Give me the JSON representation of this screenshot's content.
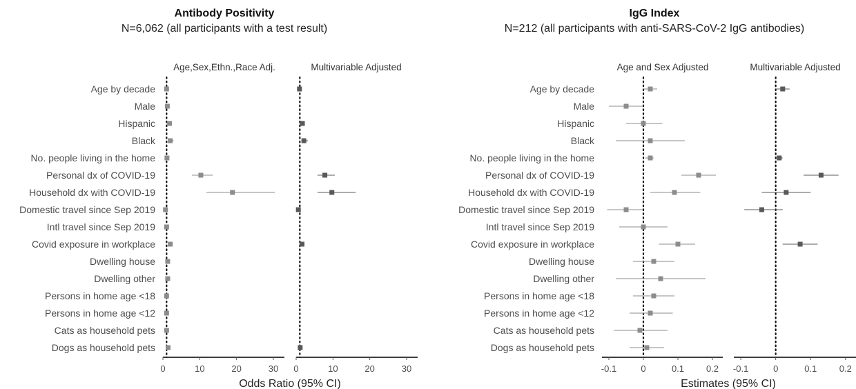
{
  "chart_data": [
    {
      "type": "forest",
      "title": "Antibody Positivity",
      "subtitle": "N=6,062 (all participants with a test result)",
      "xlabel": "Odds Ratio (95% CI)",
      "xlim": [
        0,
        33
      ],
      "xticks": [
        0,
        10,
        20,
        30
      ],
      "reference_line": 1,
      "rows": [
        "Age by decade",
        "Male",
        "Hispanic",
        "Black",
        "No. people living in the home",
        "Personal dx of COVID-19",
        "Household dx with COVID-19",
        "Domestic travel since Sep 2019",
        "Intl travel since Sep 2019",
        "Covid exposure in workplace",
        "Dwelling house",
        "Dwelling other",
        "Persons in home age <18",
        "Persons in home age <12",
        "Cats as household pets",
        "Dogs as household pets"
      ],
      "panels": [
        {
          "label": "Age,Sex,Ethn.,Race Adj.",
          "color": "#8c8c8c",
          "estimates": [
            [
              1.0,
              0.9,
              1.1
            ],
            [
              1.2,
              1.0,
              1.4
            ],
            [
              1.8,
              1.4,
              2.3
            ],
            [
              2.0,
              1.4,
              2.9
            ],
            [
              1.1,
              1.0,
              1.3
            ],
            [
              10.3,
              7.9,
              13.5
            ],
            [
              18.9,
              11.8,
              30.4
            ],
            [
              0.7,
              0.6,
              0.9
            ],
            [
              1.0,
              0.8,
              1.3
            ],
            [
              2.0,
              1.6,
              2.5
            ],
            [
              1.3,
              1.0,
              1.6
            ],
            [
              1.3,
              0.8,
              2.0
            ],
            [
              1.0,
              0.8,
              1.3
            ],
            [
              1.0,
              0.8,
              1.3
            ],
            [
              1.0,
              0.8,
              1.3
            ],
            [
              1.4,
              1.1,
              1.8
            ]
          ]
        },
        {
          "label": "Multivariable Adjusted",
          "color": "#595959",
          "estimates": [
            [
              0.9,
              0.8,
              1.1
            ],
            null,
            [
              1.7,
              1.3,
              2.3
            ],
            [
              2.1,
              1.4,
              3.2
            ],
            null,
            [
              7.8,
              5.8,
              10.5
            ],
            [
              9.7,
              5.8,
              16.2
            ],
            [
              0.6,
              0.5,
              0.8
            ],
            null,
            [
              1.6,
              1.2,
              2.1
            ],
            null,
            null,
            null,
            null,
            null,
            [
              1.1,
              0.8,
              1.5
            ]
          ]
        }
      ]
    },
    {
      "type": "forest",
      "title": "IgG Index",
      "subtitle": "N=212 (all participants with anti-SARS-CoV-2 IgG antibodies)",
      "xlabel": "Estimates (95% CI)",
      "xlim": [
        -0.12,
        0.23
      ],
      "xticks": [
        -0.1,
        0.0,
        0.1,
        0.2
      ],
      "reference_line": 0,
      "rows": [
        "Age by decade",
        "Male",
        "Hispanic",
        "Black",
        "No. people living in the home",
        "Personal dx of COVID-19",
        "Household dx with COVID-19",
        "Domestic travel since Sep 2019",
        "Intl travel since Sep 2019",
        "Covid exposure in workplace",
        "Dwelling house",
        "Dwelling other",
        "Persons in home age <18",
        "Persons in home age <12",
        "Cats as household pets",
        "Dogs as household pets"
      ],
      "panels": [
        {
          "label": "Age and Sex Adjusted",
          "color": "#8c8c8c",
          "estimates": [
            [
              0.02,
              0.0,
              0.04
            ],
            [
              -0.05,
              -0.1,
              0.0
            ],
            [
              0.0,
              -0.05,
              0.055
            ],
            [
              0.02,
              -0.08,
              0.12
            ],
            [
              0.02,
              0.005,
              0.03
            ],
            [
              0.16,
              0.11,
              0.21
            ],
            [
              0.09,
              0.02,
              0.165
            ],
            [
              -0.05,
              -0.105,
              0.0
            ],
            [
              0.0,
              -0.07,
              0.07
            ],
            [
              0.1,
              0.045,
              0.15
            ],
            [
              0.03,
              -0.03,
              0.09
            ],
            [
              0.05,
              -0.08,
              0.18
            ],
            [
              0.03,
              -0.03,
              0.09
            ],
            [
              0.02,
              -0.04,
              0.085
            ],
            [
              -0.01,
              -0.085,
              0.07
            ],
            [
              0.01,
              -0.04,
              0.06
            ]
          ]
        },
        {
          "label": "Multivariable Adjusted",
          "color": "#595959",
          "estimates": [
            [
              0.02,
              0.0,
              0.04
            ],
            null,
            null,
            null,
            [
              0.01,
              0.0,
              0.02
            ],
            [
              0.13,
              0.08,
              0.18
            ],
            [
              0.03,
              -0.04,
              0.1
            ],
            [
              -0.04,
              -0.09,
              0.02
            ],
            null,
            [
              0.07,
              0.02,
              0.12
            ],
            null,
            null,
            null,
            null,
            null,
            null
          ]
        }
      ]
    }
  ]
}
